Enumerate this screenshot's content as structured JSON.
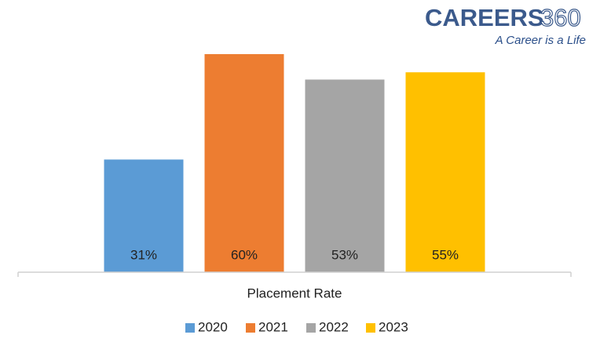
{
  "chart_data": {
    "type": "bar",
    "categories": [
      "Placement Rate"
    ],
    "series": [
      {
        "name": "2020",
        "color": "#5b9bd5",
        "values": [
          31
        ],
        "value_labels": [
          "31%"
        ]
      },
      {
        "name": "2021",
        "color": "#ed7d31",
        "values": [
          60
        ],
        "value_labels": [
          "60%"
        ]
      },
      {
        "name": "2022",
        "color": "#a5a5a5",
        "values": [
          53
        ],
        "value_labels": [
          "53%"
        ]
      },
      {
        "name": "2023",
        "color": "#ffc000",
        "values": [
          55
        ],
        "value_labels": [
          "55%"
        ]
      }
    ],
    "ylim": [
      0,
      60
    ],
    "grid": false,
    "legend": "bottom",
    "logo": {
      "brand": "CAREERS",
      "number": "360",
      "tagline": "A Career is a Life"
    }
  }
}
